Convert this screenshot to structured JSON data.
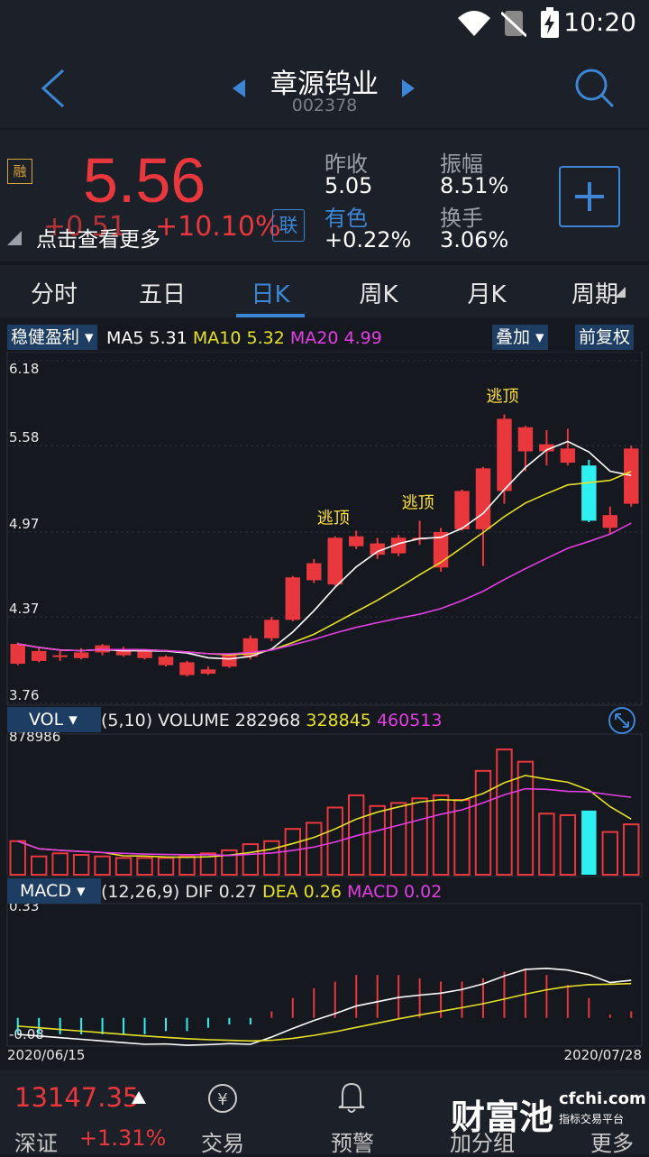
{
  "status": {
    "time": "10:20"
  },
  "header": {
    "name": "章源钨业",
    "code": "002378"
  },
  "quote": {
    "price": "5.56",
    "change": "+0.51",
    "change_pct": "+10.10%",
    "tip": "点击查看更多",
    "badge_left": "融",
    "badge_link": "联",
    "prev_close_label": "昨收",
    "prev_close": "5.05",
    "amplitude_label": "振幅",
    "amplitude": "8.51%",
    "sector_label": "有色",
    "sector_change": "+0.22%",
    "turnover_label": "换手",
    "turnover": "3.06%",
    "colors": {
      "up": "#e8383d",
      "down": "#2ff0f0",
      "accent": "#3d86d6"
    }
  },
  "tabs": [
    "分时",
    "五日",
    "日K",
    "周K",
    "月K",
    "周期"
  ],
  "active_tab": "日K",
  "kline": {
    "strategy": "稳健盈利",
    "ma5_label": "MA5",
    "ma5": "5.31",
    "ma10_label": "MA10",
    "ma10": "5.32",
    "ma20_label": "MA20",
    "ma20": "4.99",
    "overlay": "叠加",
    "adjust": "前复权",
    "y_ticks": [
      "6.18",
      "5.58",
      "4.97",
      "4.37",
      "3.76"
    ],
    "signal_label": "逃顶",
    "start_date": "2020/06/15",
    "end_date": "2020/07/28"
  },
  "volume": {
    "name": "VOL",
    "params": "(5,10) VOLUME",
    "volume": "282968",
    "ma5": "328845",
    "ma10": "460513",
    "max": "878986"
  },
  "macd": {
    "name": "MACD",
    "params": "(12,26,9) DIF",
    "dif": "0.27",
    "dea_label": "DEA",
    "dea": "0.26",
    "macd_label": "MACD",
    "macd": "0.02",
    "top": "0.33",
    "bottom": "-0.08"
  },
  "bottom": {
    "index_value": "13147.35",
    "index_name": "深证",
    "index_change": "+1.31%",
    "trade": "交易",
    "alert": "预警",
    "add_group": "加分组",
    "more": "更多",
    "logo_text": "财富池",
    "logo_site": "cfchi.com",
    "logo_slogan": "指标交易平台"
  },
  "chart_data": {
    "type": "candlestick",
    "x_start": "2020/06/15",
    "x_end": "2020/07/28",
    "ylim": [
      3.76,
      6.18
    ],
    "candles": [
      {
        "o": 4.04,
        "c": 4.18,
        "h": 4.19,
        "l": 4.03
      },
      {
        "o": 4.06,
        "c": 4.13,
        "h": 4.16,
        "l": 4.05
      },
      {
        "o": 4.09,
        "c": 4.1,
        "h": 4.13,
        "l": 4.06
      },
      {
        "o": 4.08,
        "c": 4.12,
        "h": 4.15,
        "l": 4.07
      },
      {
        "o": 4.12,
        "c": 4.17,
        "h": 4.18,
        "l": 4.1
      },
      {
        "o": 4.1,
        "c": 4.14,
        "h": 4.16,
        "l": 4.09
      },
      {
        "o": 4.08,
        "c": 4.13,
        "h": 4.14,
        "l": 4.07
      },
      {
        "o": 4.03,
        "c": 4.09,
        "h": 4.1,
        "l": 4.02
      },
      {
        "o": 3.96,
        "c": 4.05,
        "h": 4.06,
        "l": 3.95
      },
      {
        "o": 3.97,
        "c": 4.0,
        "h": 4.02,
        "l": 3.96
      },
      {
        "o": 4.02,
        "c": 4.1,
        "h": 4.11,
        "l": 4.01
      },
      {
        "o": 4.09,
        "c": 4.22,
        "h": 4.24,
        "l": 4.07
      },
      {
        "o": 4.22,
        "c": 4.35,
        "h": 4.37,
        "l": 4.2
      },
      {
        "o": 4.35,
        "c": 4.65,
        "h": 4.66,
        "l": 4.34
      },
      {
        "o": 4.63,
        "c": 4.75,
        "h": 4.78,
        "l": 4.61
      },
      {
        "o": 4.6,
        "c": 4.93,
        "h": 4.94,
        "l": 4.59
      },
      {
        "o": 4.87,
        "c": 4.94,
        "h": 4.98,
        "l": 4.85
      },
      {
        "o": 4.81,
        "c": 4.89,
        "h": 4.93,
        "l": 4.78
      },
      {
        "o": 4.82,
        "c": 4.93,
        "h": 4.95,
        "l": 4.8
      },
      {
        "o": 4.92,
        "c": 4.93,
        "h": 5.05,
        "l": 4.88
      },
      {
        "o": 4.72,
        "c": 4.97,
        "h": 5.0,
        "l": 4.69
      },
      {
        "o": 4.99,
        "c": 5.26,
        "h": 5.27,
        "l": 4.98
      },
      {
        "o": 4.99,
        "c": 5.42,
        "h": 5.43,
        "l": 4.73
      },
      {
        "o": 5.26,
        "c": 5.77,
        "h": 5.8,
        "l": 5.17
      },
      {
        "o": 5.54,
        "c": 5.71,
        "h": 5.72,
        "l": 5.4
      },
      {
        "o": 5.54,
        "c": 5.59,
        "h": 5.69,
        "l": 5.44
      },
      {
        "o": 5.46,
        "c": 5.56,
        "h": 5.7,
        "l": 5.44
      },
      {
        "o": 5.44,
        "c": 5.05,
        "h": 5.48,
        "l": 5.04
      },
      {
        "o": 5.0,
        "c": 5.09,
        "h": 5.15,
        "l": 4.96
      },
      {
        "o": 5.17,
        "c": 5.56,
        "h": 5.58,
        "l": 5.15
      }
    ],
    "volume": [
      110,
      60,
      70,
      65,
      60,
      55,
      55,
      55,
      60,
      70,
      80,
      100,
      110,
      150,
      170,
      220,
      260,
      225,
      235,
      250,
      260,
      245,
      340,
      410,
      370,
      200,
      195,
      210,
      140,
      165
    ],
    "volume_max": 878986,
    "macd_hist": [
      -0.05,
      -0.05,
      -0.05,
      -0.05,
      -0.05,
      -0.05,
      -0.05,
      -0.04,
      -0.04,
      -0.03,
      -0.02,
      -0.02,
      0.02,
      0.06,
      0.09,
      0.11,
      0.13,
      0.13,
      0.13,
      0.12,
      0.11,
      0.11,
      0.12,
      0.14,
      0.15,
      0.13,
      0.1,
      0.06,
      0.01,
      0.02
    ],
    "macd_range": [
      -0.08,
      0.33
    ]
  }
}
